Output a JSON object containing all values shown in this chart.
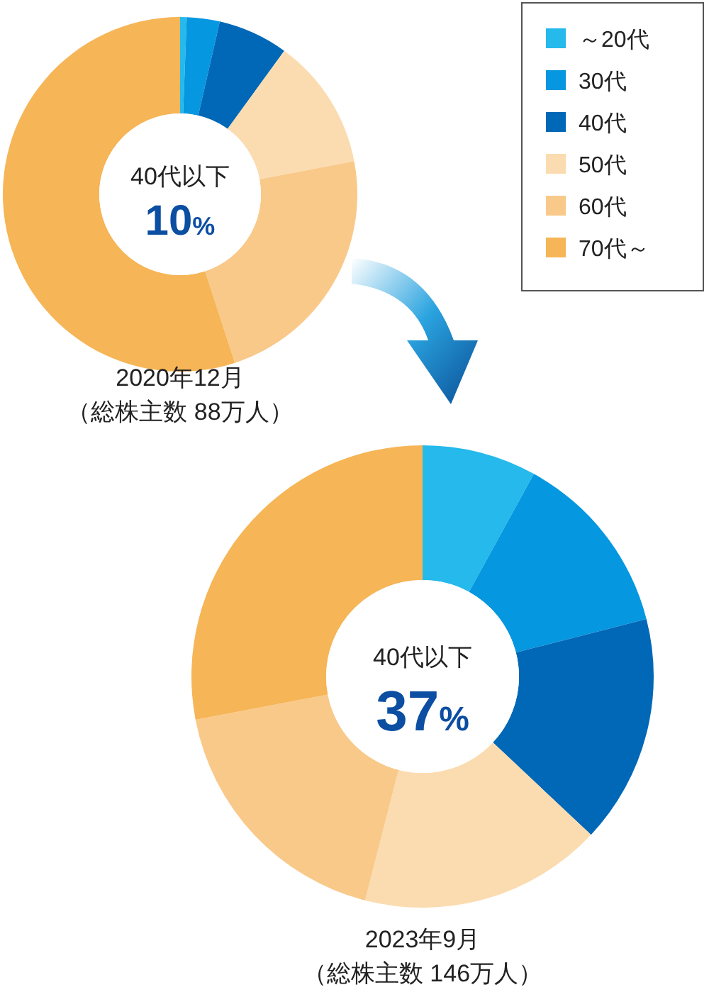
{
  "chart_data": [
    {
      "type": "donut",
      "title": "2020年12月",
      "subtitle": "（総株主数 88万人）",
      "categories": [
        "～20代",
        "30代",
        "40代",
        "50代",
        "60代",
        "70代～"
      ],
      "values": [
        0.6,
        3,
        6.4,
        12,
        23,
        55
      ],
      "colors": [
        "#25b9ec",
        "#0597e0",
        "#0068b7",
        "#fbdcb0",
        "#f9c98a",
        "#f6b556"
      ],
      "annotations": [
        "40代以下",
        "10%"
      ],
      "legend": "top right"
    },
    {
      "type": "donut",
      "title": "2023年9月",
      "subtitle": "（総株主数 146万人）",
      "categories": [
        null,
        null,
        null,
        null,
        null,
        null
      ],
      "values": [
        8,
        13,
        16,
        17,
        18,
        28
      ],
      "colors": [
        "#25b9ec",
        "#0597e0",
        "#0068b7",
        "#fbdcb0",
        "#f9c98a",
        "#f6b556"
      ],
      "annotations": [
        "40代以下",
        "37%"
      ]
    }
  ]
}
